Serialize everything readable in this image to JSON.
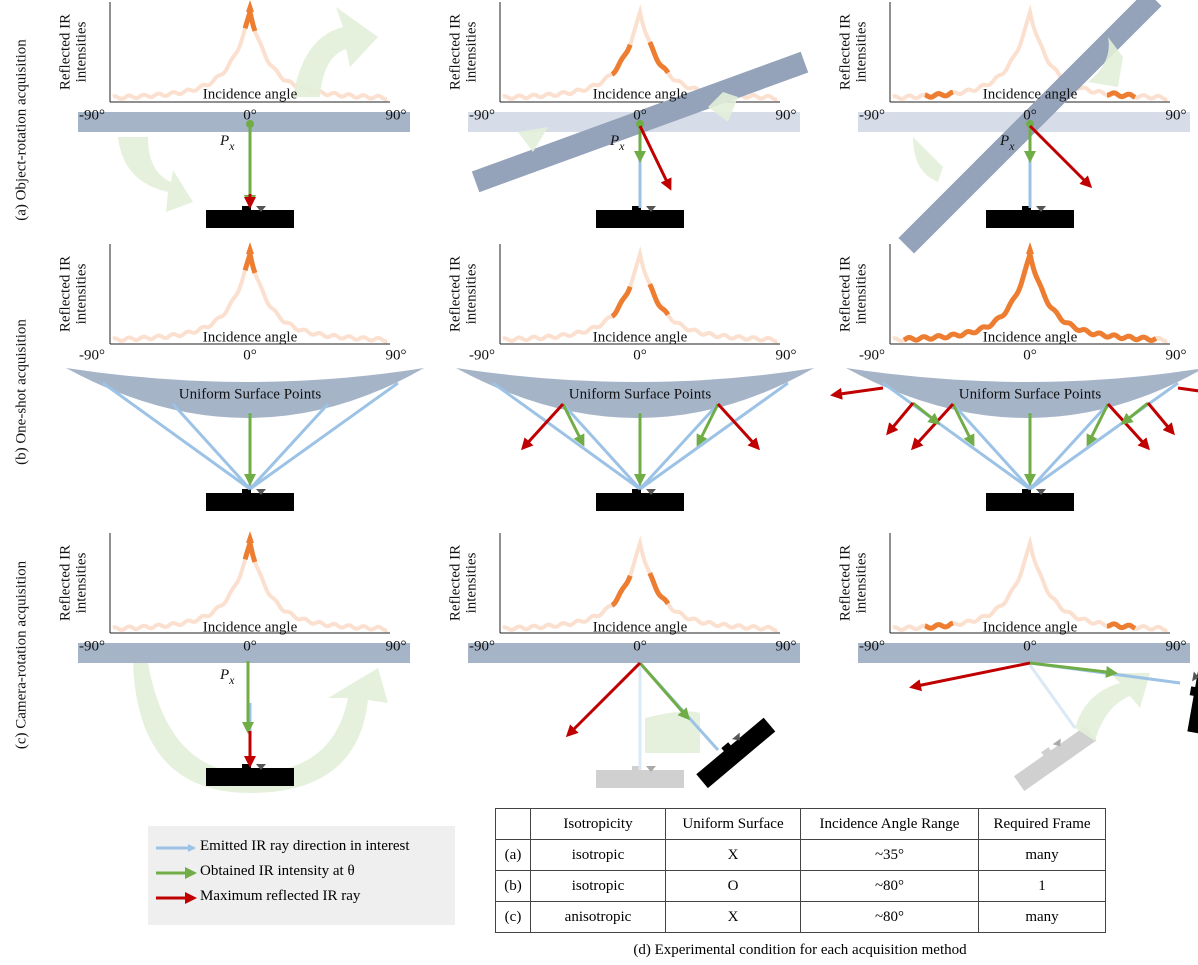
{
  "rows": [
    "(a) Object-rotation acquisition",
    "(b) One-shot acquisition",
    "(c) Camera-rotation acquisition"
  ],
  "panel": {
    "y_label": [
      "Reflected IR",
      "intensities"
    ],
    "x_label": "Incidence angle",
    "ticks": [
      "-90°",
      "0°",
      "90°"
    ],
    "surface": "Uniform Surface Points",
    "point": "P",
    "point_sub": "x"
  },
  "legend": [
    "Emitted IR ray direction in interest",
    "Obtained IR intensity at θ",
    "Maximum reflected IR ray"
  ],
  "table": {
    "header": [
      "Isotropicity",
      "Uniform Surface",
      "Incidence Angle Range",
      "Required Frame"
    ],
    "rows": [
      [
        "(a)",
        "isotropic",
        "X",
        "~35°",
        "many"
      ],
      [
        "(b)",
        "isotropic",
        "O",
        "~80°",
        "1"
      ],
      [
        "(c)",
        "anisotropic",
        "X",
        "~80°",
        "many"
      ]
    ]
  },
  "caption": "(d) Experimental condition for each acquisition method"
}
